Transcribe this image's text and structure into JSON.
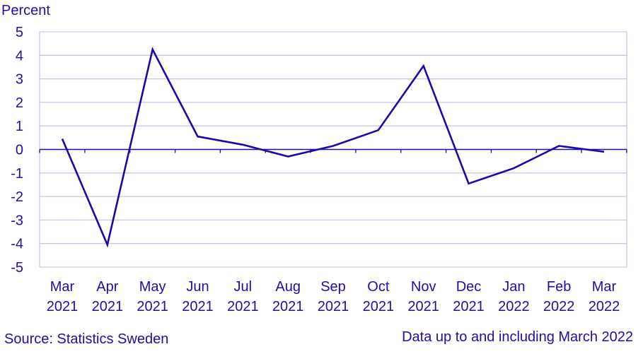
{
  "chart_data": {
    "type": "line",
    "ylabel": "Percent",
    "xlabel": "",
    "title": "",
    "categories": [
      [
        "Mar",
        "2021"
      ],
      [
        "Apr",
        "2021"
      ],
      [
        "May",
        "2021"
      ],
      [
        "Jun",
        "2021"
      ],
      [
        "Jul",
        "2021"
      ],
      [
        "Aug",
        "2021"
      ],
      [
        "Sep",
        "2021"
      ],
      [
        "Oct",
        "2021"
      ],
      [
        "Nov",
        "2021"
      ],
      [
        "Dec",
        "2021"
      ],
      [
        "Jan",
        "2022"
      ],
      [
        "Feb",
        "2022"
      ],
      [
        "Mar",
        "2022"
      ]
    ],
    "series": [
      {
        "values": [
          0.45,
          -4.05,
          4.25,
          0.55,
          0.2,
          -0.3,
          0.15,
          0.82,
          3.55,
          -1.45,
          -0.8,
          0.15,
          -0.1
        ]
      }
    ],
    "ylim": [
      -5,
      5
    ],
    "yticks": [
      5,
      4,
      3,
      2,
      1,
      0,
      -1,
      -2,
      -3,
      -4,
      -5
    ],
    "grid": true,
    "legend": "none",
    "colors": {
      "line": "#1a0aa8",
      "grid": "#c9c7ea",
      "axis": "#1a0aa8",
      "text": "#1f0fa6"
    }
  },
  "footer": {
    "source": "Source: Statistics Sweden",
    "note": "Data up to and including March 2022"
  }
}
